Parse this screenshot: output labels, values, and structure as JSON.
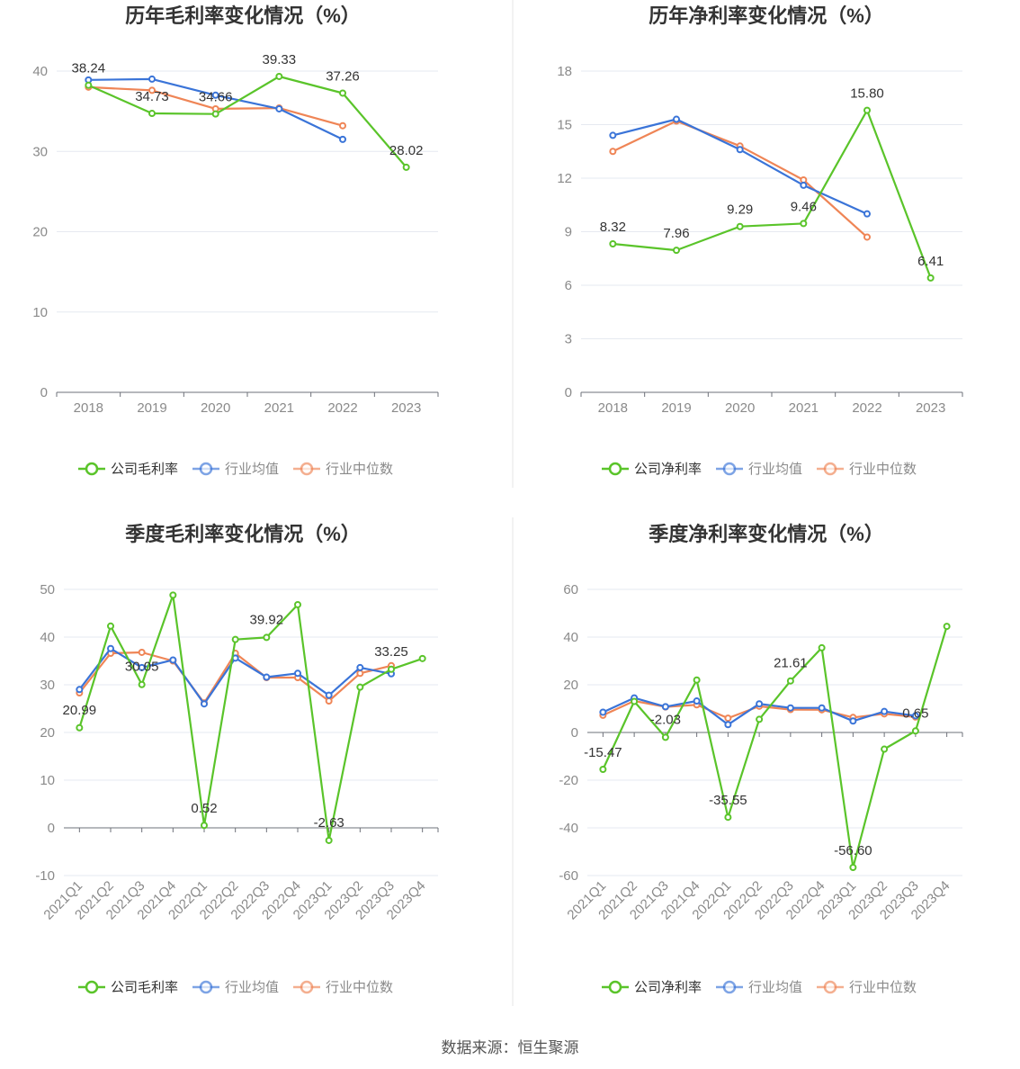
{
  "colors": {
    "company": "#5ac42a",
    "industry_avg": "#3a74d8",
    "industry_median": "#ef8556",
    "grid": "#e6e9f0",
    "axis": "#6e7079",
    "divider": "#e6e6e6"
  },
  "source_text": "数据来源：恒生聚源",
  "chart_data": [
    {
      "type": "line",
      "title": "历年毛利率变化情况（%）",
      "categories": [
        "2018",
        "2019",
        "2020",
        "2021",
        "2022",
        "2023"
      ],
      "ylim": [
        0,
        40
      ],
      "yticks": [
        0,
        10,
        20,
        30,
        40
      ],
      "legend_position": "bottom",
      "series": [
        {
          "key": "company",
          "name": "公司毛利率",
          "values": [
            38.24,
            34.73,
            34.66,
            39.33,
            37.26,
            28.02
          ],
          "labels": [
            "38.24",
            "34.73",
            "34.66",
            "39.33",
            "37.26",
            "28.02"
          ]
        },
        {
          "key": "industry_avg",
          "name": "行业均值",
          "values": [
            38.9,
            39.0,
            37.0,
            35.3,
            31.5,
            null
          ]
        },
        {
          "key": "industry_median",
          "name": "行业中位数",
          "values": [
            38.0,
            37.6,
            35.3,
            35.4,
            33.2,
            null
          ]
        }
      ]
    },
    {
      "type": "line",
      "title": "历年净利率变化情况（%）",
      "categories": [
        "2018",
        "2019",
        "2020",
        "2021",
        "2022",
        "2023"
      ],
      "ylim": [
        0,
        18
      ],
      "yticks": [
        0,
        3,
        6,
        9,
        12,
        15,
        18
      ],
      "legend_position": "bottom",
      "series": [
        {
          "key": "company",
          "name": "公司净利率",
          "values": [
            8.32,
            7.96,
            9.29,
            9.46,
            15.8,
            6.41
          ],
          "labels": [
            "8.32",
            "7.96",
            "9.29",
            "9.46",
            "15.80",
            "6.41"
          ]
        },
        {
          "key": "industry_avg",
          "name": "行业均值",
          "values": [
            14.4,
            15.3,
            13.6,
            11.6,
            10.0,
            null
          ]
        },
        {
          "key": "industry_median",
          "name": "行业中位数",
          "values": [
            13.5,
            15.2,
            13.8,
            11.9,
            8.7,
            null
          ]
        }
      ]
    },
    {
      "type": "line",
      "title": "季度毛利率变化情况（%）",
      "categories": [
        "2021Q1",
        "2021Q2",
        "2021Q3",
        "2021Q4",
        "2022Q1",
        "2022Q2",
        "2022Q3",
        "2022Q4",
        "2023Q1",
        "2023Q2",
        "2023Q3",
        "2023Q4"
      ],
      "ylim": [
        -10,
        50
      ],
      "yticks": [
        -10,
        0,
        10,
        20,
        30,
        40,
        50
      ],
      "legend_position": "bottom",
      "series": [
        {
          "key": "company",
          "name": "公司毛利率",
          "values": [
            20.99,
            42.3,
            30.05,
            48.8,
            0.52,
            39.5,
            39.92,
            46.8,
            -2.63,
            29.5,
            33.25,
            35.5
          ],
          "labels": [
            "20.99",
            "",
            "30.05",
            "",
            "0.52",
            "",
            "39.92",
            "",
            "-2.63",
            "",
            "33.25",
            ""
          ]
        },
        {
          "key": "industry_avg",
          "name": "行业均值",
          "values": [
            29.0,
            37.6,
            33.6,
            35.2,
            26.0,
            35.6,
            31.6,
            32.4,
            27.8,
            33.6,
            32.3,
            null
          ]
        },
        {
          "key": "industry_median",
          "name": "行业中位数",
          "values": [
            28.3,
            36.6,
            36.8,
            35.0,
            26.2,
            36.6,
            31.5,
            31.5,
            26.6,
            32.4,
            34.0,
            null
          ]
        }
      ]
    },
    {
      "type": "line",
      "title": "季度净利率变化情况（%）",
      "categories": [
        "2021Q1",
        "2021Q2",
        "2021Q3",
        "2021Q4",
        "2022Q1",
        "2022Q2",
        "2022Q3",
        "2022Q4",
        "2023Q1",
        "2023Q2",
        "2023Q3",
        "2023Q4"
      ],
      "ylim": [
        -60,
        60
      ],
      "yticks": [
        -60,
        -40,
        -20,
        0,
        20,
        40,
        60
      ],
      "legend_position": "bottom",
      "series": [
        {
          "key": "company",
          "name": "公司净利率",
          "values": [
            -15.47,
            13.0,
            -2.03,
            22.0,
            -35.55,
            5.5,
            21.61,
            35.5,
            -56.6,
            -7.0,
            0.65,
            44.5
          ],
          "labels": [
            "-15.47",
            "",
            "-2.03",
            "",
            "-35.55",
            "",
            "21.61",
            "",
            "-56.60",
            "",
            "0.65",
            ""
          ]
        },
        {
          "key": "industry_avg",
          "name": "行业均值",
          "values": [
            8.5,
            14.5,
            10.8,
            13.2,
            3.3,
            12.0,
            10.3,
            10.3,
            4.8,
            8.8,
            7.0,
            null
          ]
        },
        {
          "key": "industry_median",
          "name": "行业中位数",
          "values": [
            7.2,
            13.2,
            10.7,
            11.6,
            6.0,
            11.0,
            9.6,
            9.5,
            6.3,
            7.8,
            6.5,
            null
          ]
        }
      ]
    }
  ]
}
